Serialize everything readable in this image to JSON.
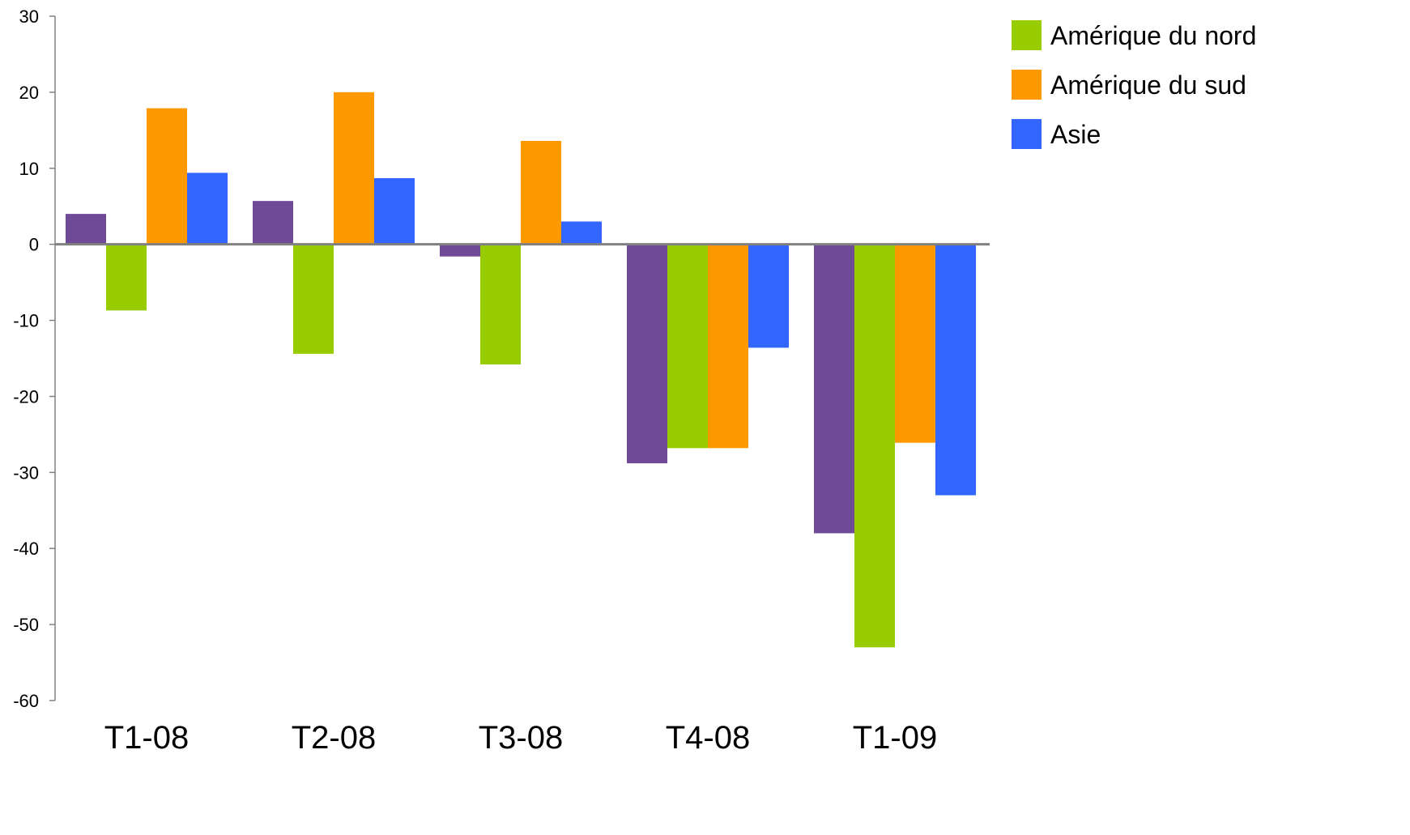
{
  "chart_data": {
    "type": "bar",
    "title": "",
    "xlabel": "",
    "ylabel": "",
    "ylim": [
      -60,
      30
    ],
    "yticks": [
      30,
      20,
      10,
      0,
      -10,
      -20,
      -30,
      -40,
      -50,
      -60
    ],
    "ytick_labels": [
      "30",
      "20",
      "10",
      "0",
      "-10",
      "-20",
      "-30",
      "-40",
      "-50",
      "-60"
    ],
    "categories": [
      "T1-08",
      "T2-08",
      "T3-08",
      "T4-08",
      "T1-09"
    ],
    "legend_position": "top-right",
    "grid": false,
    "series": [
      {
        "name": "",
        "color": "#6f4a96",
        "values": [
          4,
          5.7,
          -1.6,
          -28.8,
          -38
        ]
      },
      {
        "name": "Amérique du nord",
        "color": "#99cc00",
        "values": [
          -8.7,
          -14.4,
          -15.8,
          -26.8,
          -53
        ]
      },
      {
        "name": "Amérique du sud",
        "color": "#ff9900",
        "values": [
          17.9,
          20,
          13.6,
          -26.8,
          -26.1
        ]
      },
      {
        "name": "Asie",
        "color": "#3366ff",
        "values": [
          9.4,
          8.7,
          3,
          -13.6,
          -33
        ]
      }
    ]
  }
}
